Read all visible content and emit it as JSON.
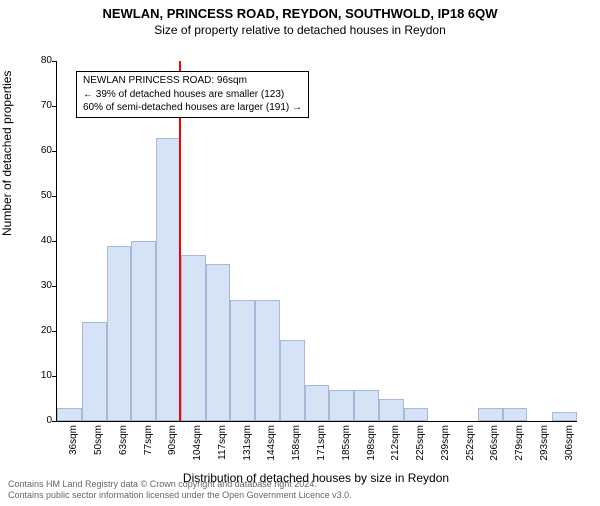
{
  "title": "NEWLAN, PRINCESS ROAD, REYDON, SOUTHWOLD, IP18 6QW",
  "subtitle": "Size of property relative to detached houses in Reydon",
  "yaxis_label": "Number of detached properties",
  "xaxis_label": "Distribution of detached houses by size in Reydon",
  "footer_line1": "Contains HM Land Registry data © Crown copyright and database right 2024.",
  "footer_line2": "Contains public sector information licensed under the Open Government Licence v3.0.",
  "annotation": {
    "line1": "NEWLAN PRINCESS ROAD: 96sqm",
    "line2": "← 39% of detached houses are smaller (123)",
    "line3": "60% of semi-detached houses are larger (191) →"
  },
  "chart": {
    "type": "histogram",
    "ylim": [
      0,
      80
    ],
    "ytick_step": 10,
    "bar_fill": "#d6e2f5",
    "bar_border": "#a8b8d8",
    "marker_color": "#ff0000",
    "marker_x_value": 96,
    "title_fontsize": 13,
    "subtitle_fontsize": 12,
    "axis_label_fontsize": 12,
    "tick_fontsize": 10,
    "annot_fontsize": 10,
    "footer_fontsize": 9,
    "categories": [
      "36sqm",
      "50sqm",
      "63sqm",
      "77sqm",
      "90sqm",
      "104sqm",
      "117sqm",
      "131sqm",
      "144sqm",
      "158sqm",
      "171sqm",
      "185sqm",
      "198sqm",
      "212sqm",
      "225sqm",
      "239sqm",
      "252sqm",
      "266sqm",
      "279sqm",
      "293sqm",
      "306sqm"
    ],
    "values": [
      3,
      22,
      39,
      40,
      63,
      37,
      35,
      27,
      27,
      18,
      8,
      7,
      7,
      5,
      3,
      0,
      0,
      3,
      3,
      0,
      2
    ]
  }
}
